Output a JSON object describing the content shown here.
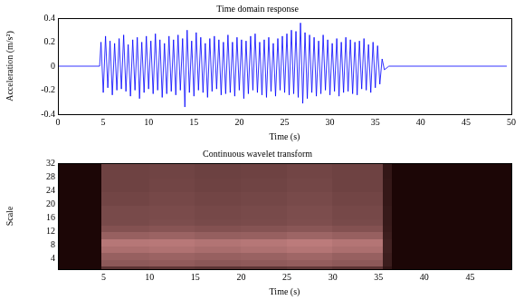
{
  "chart_data": [
    {
      "type": "line",
      "title": "Time domain response",
      "x_label": "Time (s)",
      "y_label": "Acceleration (m/s²)",
      "x": [
        0,
        4.6,
        4.75,
        5,
        5.25,
        5.5,
        5.75,
        6,
        6.25,
        6.5,
        6.75,
        7,
        7.25,
        7.5,
        7.75,
        8,
        8.25,
        8.5,
        8.75,
        9,
        9.25,
        9.5,
        9.75,
        10,
        10.25,
        10.5,
        10.75,
        11,
        11.25,
        11.5,
        11.75,
        12,
        12.25,
        12.5,
        12.75,
        13,
        13.25,
        13.5,
        13.75,
        14,
        14.25,
        14.5,
        14.75,
        15,
        15.25,
        15.5,
        15.75,
        16,
        16.25,
        16.5,
        16.75,
        17,
        17.25,
        17.5,
        17.75,
        18,
        18.25,
        18.5,
        18.75,
        19,
        19.25,
        19.5,
        19.75,
        20,
        20.25,
        20.5,
        20.75,
        21,
        21.25,
        21.5,
        21.75,
        22,
        22.25,
        22.5,
        22.75,
        23,
        23.25,
        23.5,
        23.75,
        24,
        24.25,
        24.5,
        24.75,
        25,
        25.25,
        25.5,
        25.75,
        26,
        26.25,
        26.5,
        26.75,
        27,
        27.25,
        27.5,
        27.75,
        28,
        28.25,
        28.5,
        28.75,
        29,
        29.25,
        29.5,
        29.75,
        30,
        30.25,
        30.5,
        30.75,
        31,
        31.25,
        31.5,
        31.75,
        32,
        32.25,
        32.5,
        32.75,
        33,
        33.25,
        33.5,
        33.75,
        34,
        34.25,
        34.5,
        34.75,
        35,
        35.25,
        35.5,
        35.75,
        36,
        36.5,
        49.5
      ],
      "values": [
        0,
        0,
        0.2,
        -0.22,
        0.25,
        -0.18,
        0.21,
        -0.24,
        0.19,
        -0.2,
        0.23,
        -0.19,
        0.26,
        -0.21,
        0.18,
        -0.25,
        0.22,
        -0.2,
        0.24,
        -0.27,
        0.2,
        -0.22,
        0.25,
        -0.19,
        0.21,
        -0.23,
        0.27,
        -0.2,
        0.22,
        -0.26,
        0.19,
        -0.23,
        0.25,
        -0.21,
        0.22,
        -0.24,
        0.26,
        -0.2,
        0.23,
        -0.34,
        0.3,
        -0.22,
        0.21,
        -0.25,
        0.28,
        -0.2,
        0.24,
        -0.22,
        0.19,
        -0.26,
        0.23,
        -0.21,
        0.25,
        -0.19,
        0.22,
        -0.24,
        0.2,
        -0.23,
        0.26,
        -0.22,
        0.2,
        -0.25,
        0.24,
        -0.2,
        0.22,
        -0.27,
        0.21,
        -0.23,
        0.25,
        -0.2,
        0.27,
        -0.22,
        0.2,
        -0.24,
        0.22,
        -0.26,
        0.24,
        -0.21,
        0.19,
        -0.25,
        0.23,
        -0.2,
        0.25,
        -0.22,
        0.27,
        -0.24,
        0.3,
        -0.23,
        0.29,
        -0.26,
        0.36,
        -0.31,
        0.28,
        -0.27,
        0.26,
        -0.22,
        0.24,
        -0.25,
        0.21,
        -0.23,
        0.26,
        -0.2,
        0.22,
        -0.24,
        0.19,
        -0.21,
        0.23,
        -0.25,
        0.2,
        -0.22,
        0.24,
        -0.21,
        0.22,
        -0.23,
        0.2,
        -0.24,
        0.21,
        -0.19,
        0.23,
        -0.2,
        0.18,
        -0.22,
        0.2,
        -0.18,
        0.17,
        -0.15,
        0.06,
        -0.03,
        0,
        0
      ],
      "color": "#0000ff",
      "xlim": [
        0,
        50
      ],
      "xticks": [
        0,
        5,
        10,
        15,
        20,
        25,
        30,
        35,
        40,
        45,
        50
      ],
      "ylim": [
        -0.4,
        0.4
      ],
      "yticks": [
        -0.4,
        -0.2,
        0,
        0.2,
        0.4
      ],
      "grid": false
    },
    {
      "type": "heatmap",
      "title": "Continuous wavelet transform",
      "x_label": "Time (s)",
      "y_label": "Scale",
      "x_bins": [
        0,
        4.8,
        10,
        15,
        20,
        25,
        30,
        35.5,
        36.5,
        49.5
      ],
      "y_bins": [
        1,
        2,
        4,
        6,
        8,
        10,
        12,
        14,
        16,
        20,
        24,
        28,
        32
      ],
      "cells": [
        [
          0,
          0.3,
          0.32,
          0.3,
          0.31,
          0.33,
          0.3,
          0.1,
          0
        ],
        [
          0,
          0.55,
          0.57,
          0.54,
          0.56,
          0.58,
          0.55,
          0.15,
          0
        ],
        [
          0,
          0.6,
          0.62,
          0.6,
          0.61,
          0.64,
          0.6,
          0.16,
          0
        ],
        [
          0,
          0.7,
          0.72,
          0.69,
          0.71,
          0.74,
          0.7,
          0.18,
          0
        ],
        [
          0,
          0.75,
          0.76,
          0.73,
          0.75,
          0.78,
          0.74,
          0.18,
          0
        ],
        [
          0,
          0.6,
          0.62,
          0.59,
          0.6,
          0.63,
          0.6,
          0.16,
          0
        ],
        [
          0,
          0.5,
          0.52,
          0.5,
          0.51,
          0.53,
          0.5,
          0.14,
          0
        ],
        [
          0,
          0.45,
          0.47,
          0.45,
          0.46,
          0.48,
          0.45,
          0.13,
          0
        ],
        [
          0,
          0.45,
          0.46,
          0.44,
          0.45,
          0.47,
          0.44,
          0.13,
          0
        ],
        [
          0,
          0.42,
          0.44,
          0.42,
          0.43,
          0.45,
          0.42,
          0.12,
          0
        ],
        [
          0,
          0.4,
          0.42,
          0.4,
          0.41,
          0.43,
          0.4,
          0.12,
          0
        ],
        [
          0,
          0.4,
          0.41,
          0.39,
          0.4,
          0.42,
          0.4,
          0.11,
          0
        ]
      ],
      "xlim": [
        0,
        49.5
      ],
      "xticks": [
        5,
        10,
        15,
        20,
        25,
        30,
        35,
        40,
        45
      ],
      "ylim": [
        1,
        32
      ],
      "yticks": [
        4,
        8,
        12,
        16,
        20,
        24,
        28,
        32
      ],
      "grid": false
    }
  ]
}
